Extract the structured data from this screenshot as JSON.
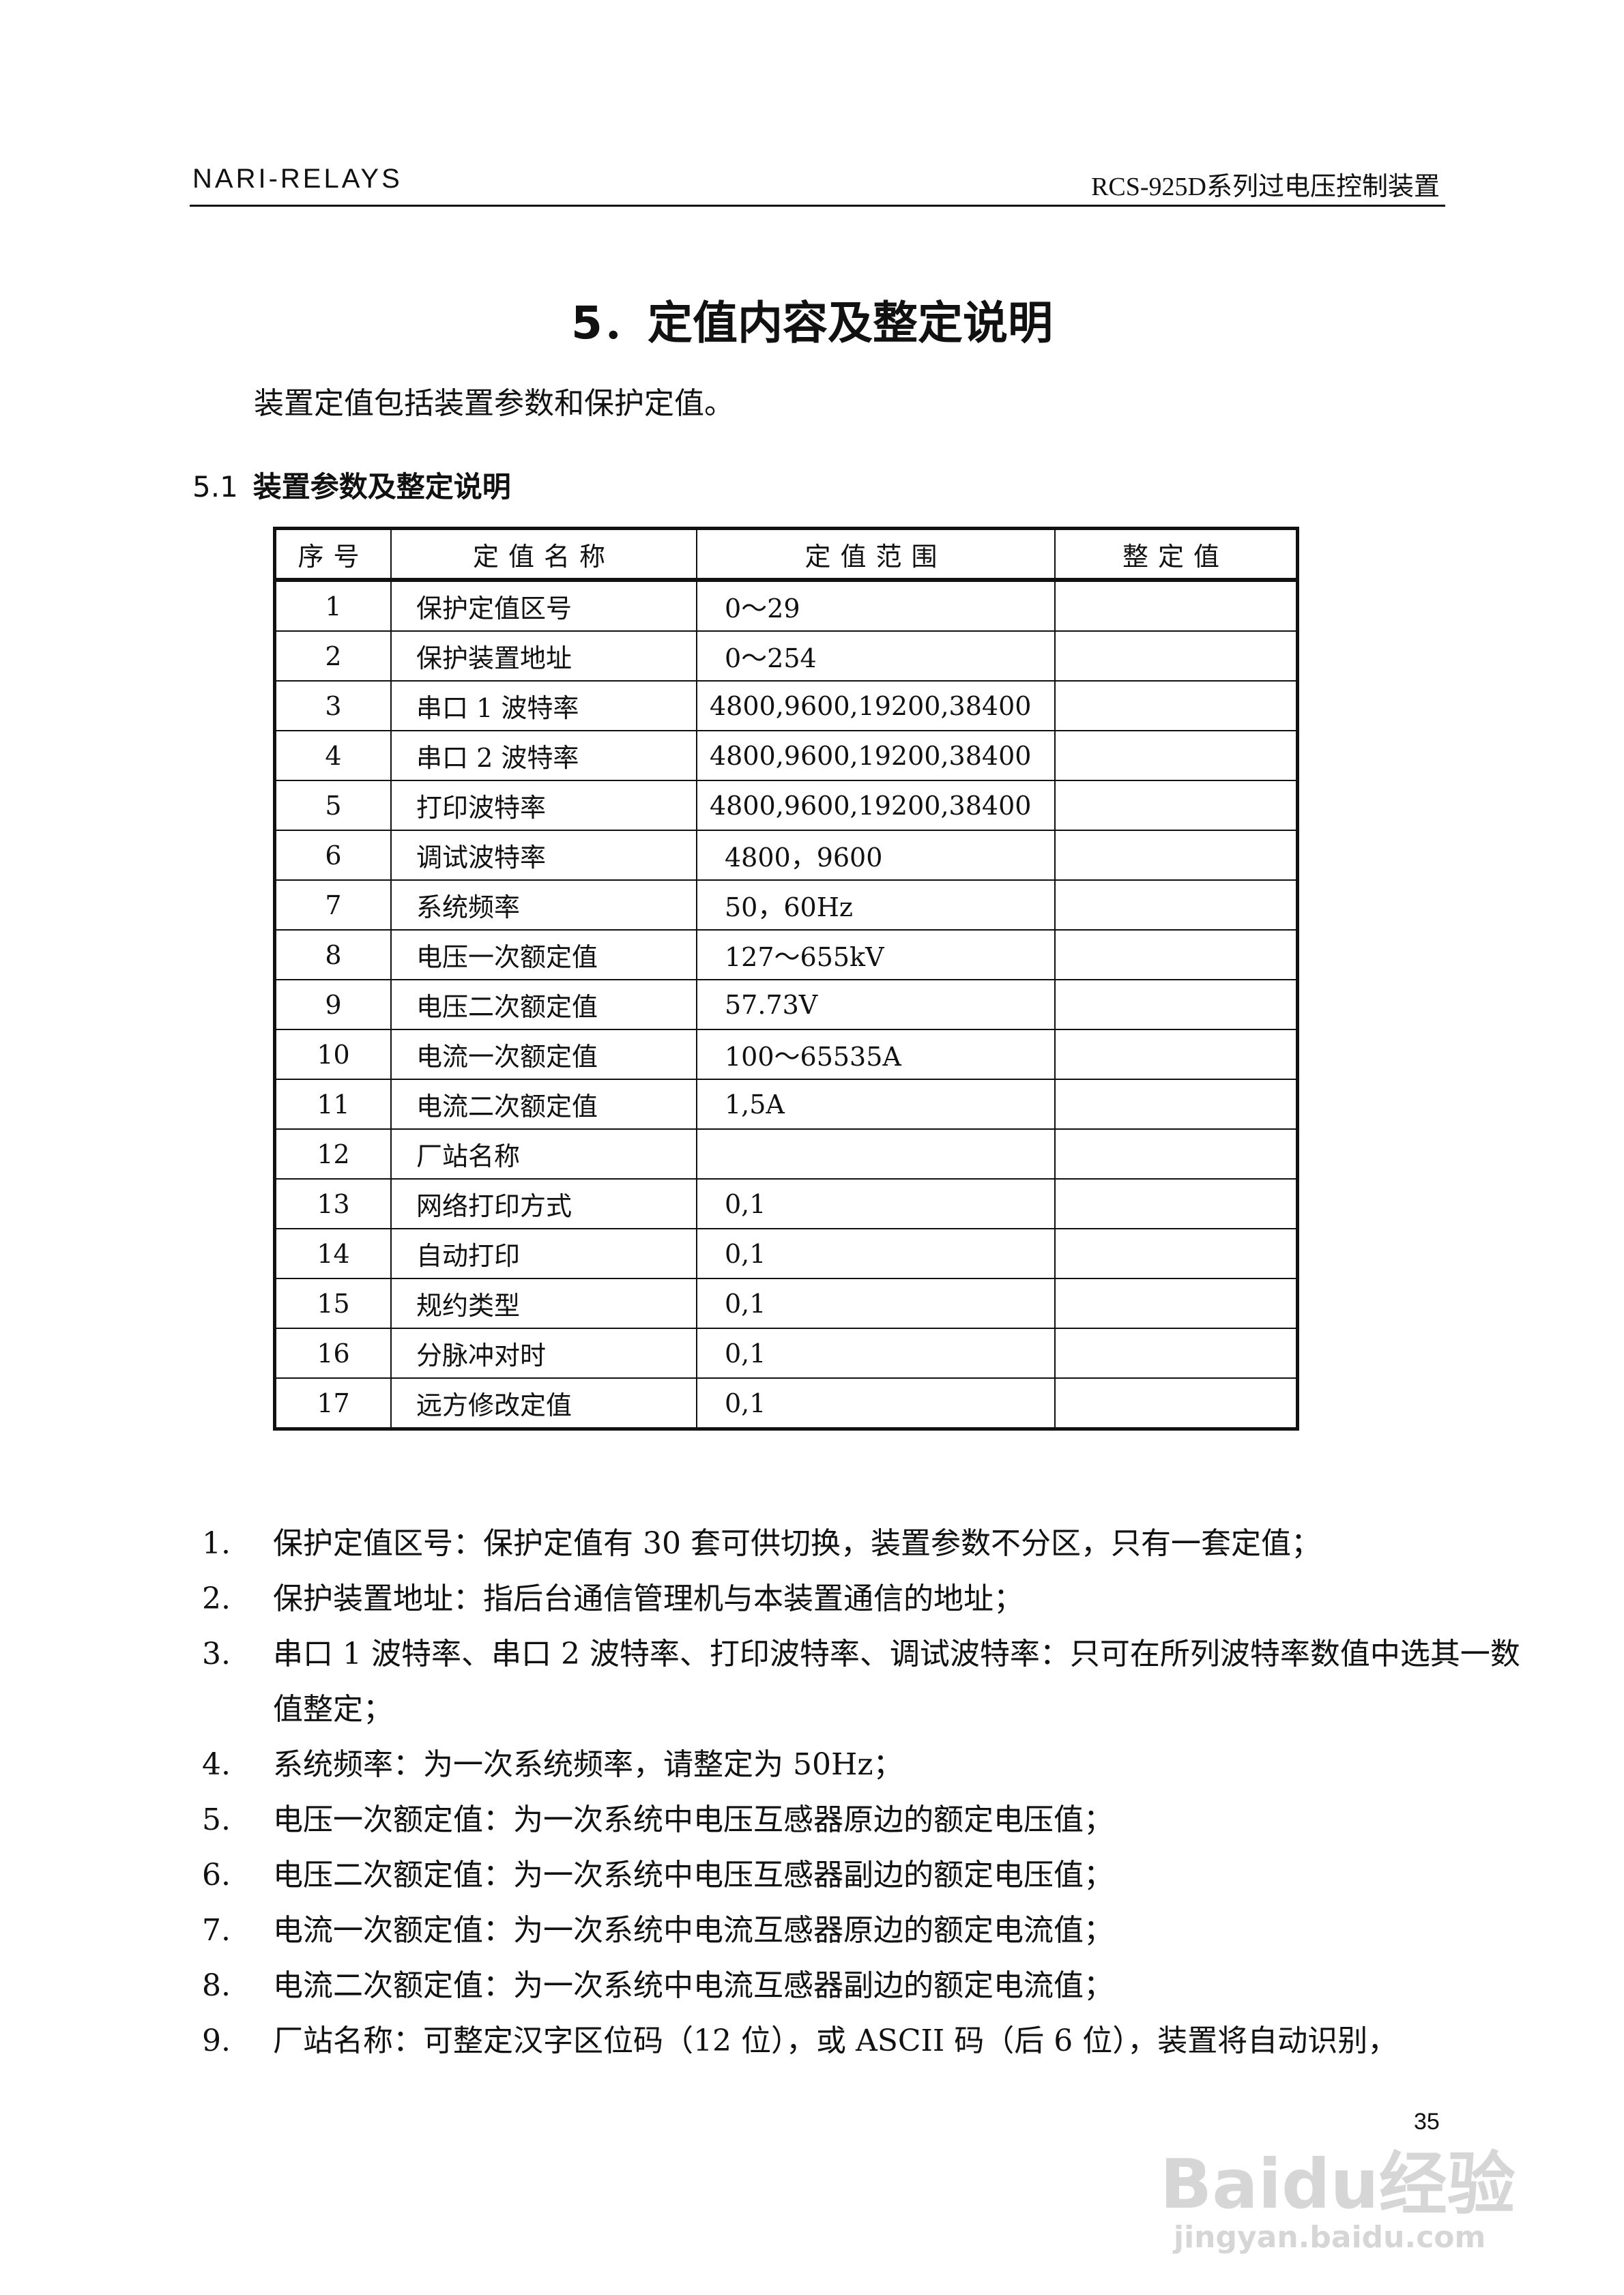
{
  "header": {
    "left": "NARI-RELAYS",
    "right": "RCS-925D系列过电压控制装置"
  },
  "title": "5．定值内容及整定说明",
  "intro": "装置定值包括装置参数和保护定值。",
  "section": {
    "number": "5.1",
    "title": "装置参数及整定说明"
  },
  "table": {
    "headers": [
      "序号",
      "定值名称",
      "定值范围",
      "整定值"
    ],
    "rows": [
      {
        "no": "1",
        "name": "保护定值区号",
        "range": "0～29",
        "value": ""
      },
      {
        "no": "2",
        "name": "保护装置地址",
        "range": "0～254",
        "value": ""
      },
      {
        "no": "3",
        "name": "串口 1 波特率",
        "range": "4800,9600,19200,38400",
        "value": ""
      },
      {
        "no": "4",
        "name": "串口 2 波特率",
        "range": "4800,9600,19200,38400",
        "value": ""
      },
      {
        "no": "5",
        "name": "打印波特率",
        "range": "4800,9600,19200,38400",
        "value": ""
      },
      {
        "no": "6",
        "name": "调试波特率",
        "range": "4800，9600",
        "value": ""
      },
      {
        "no": "7",
        "name": "系统频率",
        "range": "50，60Hz",
        "value": ""
      },
      {
        "no": "8",
        "name": "电压一次额定值",
        "range": "127～655kV",
        "value": ""
      },
      {
        "no": "9",
        "name": "电压二次额定值",
        "range": "57.73V",
        "value": ""
      },
      {
        "no": "10",
        "name": "电流一次额定值",
        "range": "100～65535A",
        "value": ""
      },
      {
        "no": "11",
        "name": "电流二次额定值",
        "range": "1,5A",
        "value": ""
      },
      {
        "no": "12",
        "name": "厂站名称",
        "range": "",
        "value": ""
      },
      {
        "no": "13",
        "name": "网络打印方式",
        "range": "0,1",
        "value": ""
      },
      {
        "no": "14",
        "name": "自动打印",
        "range": "0,1",
        "value": ""
      },
      {
        "no": "15",
        "name": "规约类型",
        "range": "0,1",
        "value": ""
      },
      {
        "no": "16",
        "name": "分脉冲对时",
        "range": "0,1",
        "value": ""
      },
      {
        "no": "17",
        "name": "远方修改定值",
        "range": "0,1",
        "value": ""
      }
    ]
  },
  "notes": [
    {
      "n": "1.",
      "t": "保护定值区号：保护定值有 30 套可供切换，装置参数不分区，只有一套定值；"
    },
    {
      "n": "2.",
      "t": "保护装置地址：指后台通信管理机与本装置通信的地址；"
    },
    {
      "n": "3.",
      "t": "串口 1 波特率、串口 2 波特率、打印波特率、调试波特率：只可在所列波特率数值中选其一数值整定；"
    },
    {
      "n": "4.",
      "t": "系统频率：为一次系统频率，请整定为 50Hz；"
    },
    {
      "n": "5.",
      "t": "电压一次额定值：为一次系统中电压互感器原边的额定电压值；"
    },
    {
      "n": "6.",
      "t": "电压二次额定值：为一次系统中电压互感器副边的额定电压值；"
    },
    {
      "n": "7.",
      "t": "电流一次额定值：为一次系统中电流互感器原边的额定电流值；"
    },
    {
      "n": "8.",
      "t": "电流二次额定值：为一次系统中电流互感器副边的额定电流值；"
    },
    {
      "n": "9.",
      "t": "厂站名称：可整定汉字区位码（12 位），或 ASCII 码（后 6 位），装置将自动识别，"
    }
  ],
  "page_number": "35",
  "watermark": {
    "logo": "Baidu经验",
    "url_text": "jingyan.baidu.com"
  }
}
